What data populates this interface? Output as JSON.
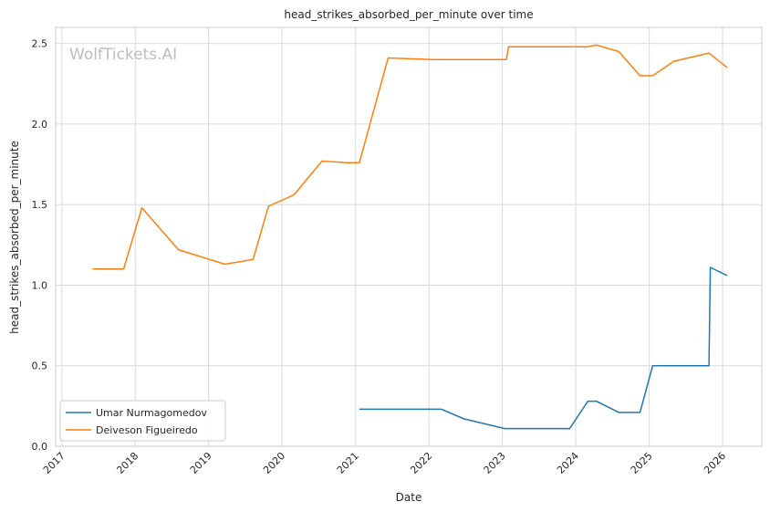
{
  "chart_data": {
    "type": "line",
    "title": "head_strikes_absorbed_per_minute over time",
    "xlabel": "Date",
    "ylabel": "head_strikes_absorbed_per_minute",
    "watermark": "WolfTickets.AI",
    "x_ticks": [
      "2017",
      "2018",
      "2019",
      "2020",
      "2021",
      "2022",
      "2023",
      "2024",
      "2025",
      "2026"
    ],
    "y_ticks": [
      "0.0",
      "0.5",
      "1.0",
      "1.5",
      "2.0",
      "2.5"
    ],
    "xlim": [
      "2016-12-01",
      "2026-07-15"
    ],
    "ylim": [
      0,
      2.6
    ],
    "grid": true,
    "legend_position": "lower-left",
    "series": [
      {
        "name": "Umar Nurmagomedov",
        "color": "#1f77b4",
        "x": [
          "2021-01-20",
          "2022-03-05",
          "2022-06-25",
          "2023-01-14",
          "2023-12-02",
          "2024-03-02",
          "2024-04-13",
          "2024-08-03",
          "2024-11-16",
          "2025-01-18",
          "2025-10-25",
          "2025-11-01",
          "2026-01-24"
        ],
        "y": [
          0.23,
          0.23,
          0.17,
          0.11,
          0.11,
          0.28,
          0.28,
          0.21,
          0.21,
          0.5,
          0.5,
          1.11,
          1.06
        ]
      },
      {
        "name": "Deiveson Figueiredo",
        "color": "#ff7f0e",
        "x": [
          "2017-06-03",
          "2017-11-04",
          "2018-02-03",
          "2018-08-04",
          "2019-03-23",
          "2019-08-10",
          "2019-10-26",
          "2020-02-29",
          "2020-07-18",
          "2020-11-21",
          "2021-01-20",
          "2021-06-12",
          "2022-01-22",
          "2023-01-21",
          "2023-02-01",
          "2024-03-02",
          "2024-04-13",
          "2024-08-03",
          "2024-11-16",
          "2025-01-18",
          "2025-05-03",
          "2025-10-25",
          "2026-01-24"
        ],
        "y": [
          1.1,
          1.1,
          1.48,
          1.22,
          1.13,
          1.16,
          1.49,
          1.56,
          1.77,
          1.76,
          1.76,
          2.41,
          2.4,
          2.4,
          2.48,
          2.48,
          2.49,
          2.45,
          2.3,
          2.3,
          2.39,
          2.44,
          2.35
        ]
      }
    ]
  }
}
